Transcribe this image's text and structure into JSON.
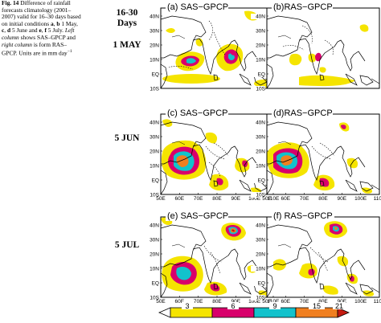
{
  "caption": {
    "fig_label": "Fig. 14",
    "part1": "Difference of rainfall forecasts climatology (2001–2007) valid for 16–30 days based on initial conditions",
    "a": "a",
    "comma1": ",",
    "b": "b",
    "may": "1 May,",
    "c": "c",
    "comma2": ",",
    "d": "d",
    "jun": "5 June and",
    "e": "e",
    "comma3": ",",
    "f": "f",
    "jul": "5 July.",
    "left_col": "Left column",
    "mid": "shows SAS–GPCP and",
    "right_col": "right column",
    "end": "is form RAS–GPCP. Units are in mm day",
    "unit_sup": "−1"
  },
  "rows": [
    {
      "label_line1": "16-30",
      "label_line2": "Days",
      "label_line3": "1 MAY"
    },
    {
      "label": "5 JUN"
    },
    {
      "label": "5 JUL"
    }
  ],
  "panels": [
    {
      "id": "a",
      "title": "(a) SAS−GPCP"
    },
    {
      "id": "b",
      "title": "(b)RAS−GPCP"
    },
    {
      "id": "c",
      "title": "(c) SAS−GPCP"
    },
    {
      "id": "d",
      "title": "(d)RAS−GPCP"
    },
    {
      "id": "e",
      "title": "(e) SAS−GPCP"
    },
    {
      "id": "f",
      "title": "(f) RAS−GPCP"
    }
  ],
  "axes": {
    "lat_ticks": [
      "40N",
      "30N",
      "20N",
      "10N",
      "EQ",
      "10S"
    ],
    "lon_ticks": [
      "50E",
      "60E",
      "70E",
      "80E",
      "90E",
      "100E",
      "110E"
    ]
  },
  "colorbar": {
    "labels": [
      "3",
      "6",
      "9",
      "15",
      "21"
    ],
    "colors": {
      "yellow": "#f5e400",
      "magenta": "#d8006b",
      "cyan": "#12c2cc",
      "orange": "#f07f20",
      "red": "#c41a10"
    }
  }
}
